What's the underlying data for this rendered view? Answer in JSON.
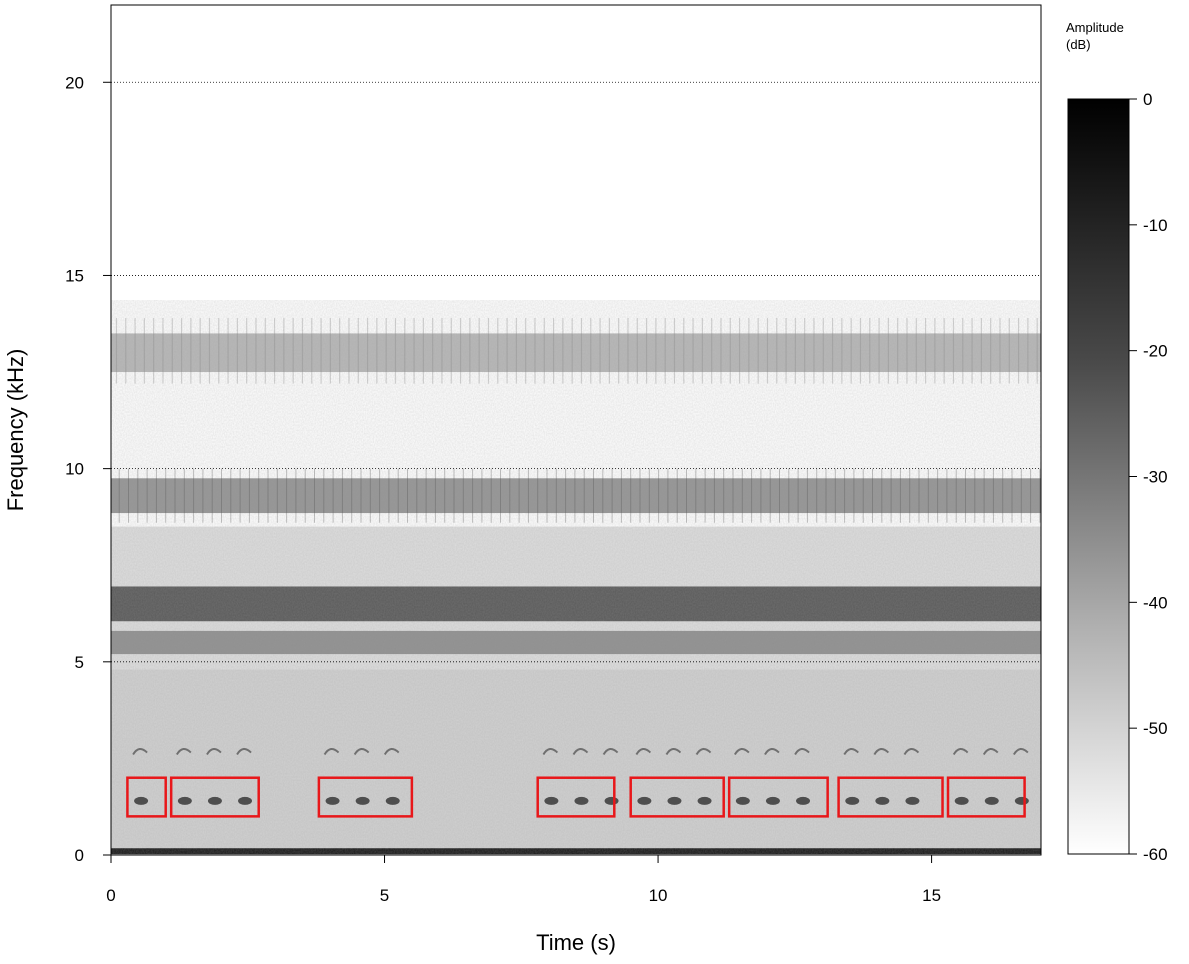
{
  "chart_data": {
    "type": "heatmap",
    "subtype": "spectrogram",
    "colormap": "grayscale (white = -60 dB, black = 0 dB)",
    "xlabel": "Time (s)",
    "ylabel": "Frequency (kHz)",
    "xlim": [
      0,
      17
    ],
    "ylim": [
      0,
      22
    ],
    "x_ticks": [
      0,
      5,
      10,
      15
    ],
    "y_ticks": [
      0,
      5,
      10,
      15,
      20
    ],
    "grid": "horizontal dotted lines at 5, 10, 15, 20 kHz",
    "colorbar": {
      "title_line1": "Amplitude",
      "title_line2": "(dB)",
      "range": [
        -60,
        0
      ],
      "ticks": [
        0,
        -10,
        -20,
        -30,
        -40,
        -50,
        -60
      ]
    },
    "energy_bands_khz": [
      {
        "center": 0.1,
        "intensity": 1.0
      },
      {
        "center": 6.5,
        "intensity": 0.8
      },
      {
        "center": 5.5,
        "intensity": 0.5
      },
      {
        "center": 9.3,
        "intensity": 0.5
      },
      {
        "center": 13.0,
        "intensity": 0.3
      }
    ],
    "detections": {
      "color": "#e8171a",
      "f_min_khz": 1.0,
      "f_max_khz": 2.0,
      "boxes_s": [
        [
          0.3,
          1.0
        ],
        [
          1.1,
          2.7
        ],
        [
          3.8,
          5.5
        ],
        [
          7.8,
          9.2
        ],
        [
          9.5,
          11.2
        ],
        [
          11.3,
          13.1
        ],
        [
          13.3,
          15.2
        ],
        [
          15.3,
          16.7
        ]
      ]
    }
  }
}
